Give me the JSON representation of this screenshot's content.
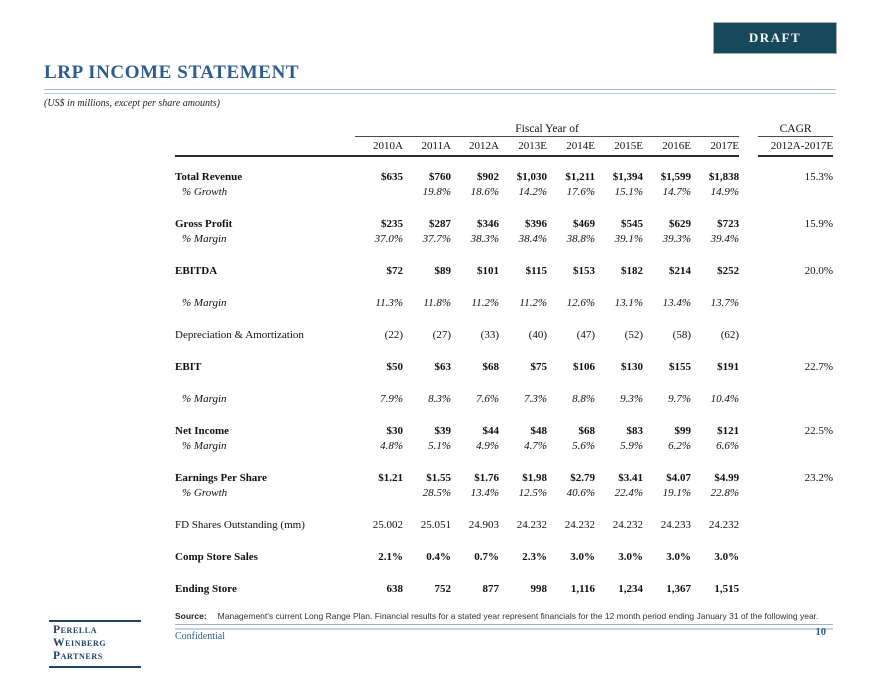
{
  "badge": {
    "label": "DRAFT"
  },
  "header": {
    "title": "LRP INCOME STATEMENT",
    "subtitle": "(US$ in millions, except per share amounts)"
  },
  "table": {
    "group_header": "Fiscal Year of",
    "cagr_header": "CAGR",
    "cagr_subheader": "2012A-2017E",
    "columns": [
      "2010A",
      "2011A",
      "2012A",
      "2013E",
      "2014E",
      "2015E",
      "2016E",
      "2017E"
    ],
    "rows": [
      {
        "label": "Total Revenue",
        "style": "bold",
        "break": false,
        "values": [
          "$635",
          "$760",
          "$902",
          "$1,030",
          "$1,211",
          "$1,394",
          "$1,599",
          "$1,838"
        ],
        "cagr": "15.3%"
      },
      {
        "label": "% Growth",
        "style": "italic",
        "break": false,
        "values": [
          "",
          "19.8%",
          "18.6%",
          "14.2%",
          "17.6%",
          "15.1%",
          "14.7%",
          "14.9%"
        ],
        "cagr": ""
      },
      {
        "label": "Gross Profit",
        "style": "bold",
        "break": true,
        "values": [
          "$235",
          "$287",
          "$346",
          "$396",
          "$469",
          "$545",
          "$629",
          "$723"
        ],
        "cagr": "15.9%"
      },
      {
        "label": "% Margin",
        "style": "italic",
        "break": false,
        "values": [
          "37.0%",
          "37.7%",
          "38.3%",
          "38.4%",
          "38.8%",
          "39.1%",
          "39.3%",
          "39.4%"
        ],
        "cagr": ""
      },
      {
        "label": "EBITDA",
        "style": "bold",
        "break": true,
        "values": [
          "$72",
          "$89",
          "$101",
          "$115",
          "$153",
          "$182",
          "$214",
          "$252"
        ],
        "cagr": "20.0%"
      },
      {
        "label": "% Margin",
        "style": "italic",
        "break": true,
        "values": [
          "11.3%",
          "11.8%",
          "11.2%",
          "11.2%",
          "12.6%",
          "13.1%",
          "13.4%",
          "13.7%"
        ],
        "cagr": ""
      },
      {
        "label": "Depreciation & Amortization",
        "style": "plain",
        "break": true,
        "values": [
          "(22)",
          "(27)",
          "(33)",
          "(40)",
          "(47)",
          "(52)",
          "(58)",
          "(62)"
        ],
        "cagr": ""
      },
      {
        "label": "EBIT",
        "style": "bold",
        "break": true,
        "values": [
          "$50",
          "$63",
          "$68",
          "$75",
          "$106",
          "$130",
          "$155",
          "$191"
        ],
        "cagr": "22.7%"
      },
      {
        "label": "% Margin",
        "style": "italic",
        "break": true,
        "values": [
          "7.9%",
          "8.3%",
          "7.6%",
          "7.3%",
          "8.8%",
          "9.3%",
          "9.7%",
          "10.4%"
        ],
        "cagr": ""
      },
      {
        "label": "Net Income",
        "style": "bold",
        "break": true,
        "values": [
          "$30",
          "$39",
          "$44",
          "$48",
          "$68",
          "$83",
          "$99",
          "$121"
        ],
        "cagr": "22.5%"
      },
      {
        "label": "% Margin",
        "style": "italic",
        "break": false,
        "values": [
          "4.8%",
          "5.1%",
          "4.9%",
          "4.7%",
          "5.6%",
          "5.9%",
          "6.2%",
          "6.6%"
        ],
        "cagr": ""
      },
      {
        "label": "Earnings Per Share",
        "style": "bold",
        "break": true,
        "values": [
          "$1.21",
          "$1.55",
          "$1.76",
          "$1.98",
          "$2.79",
          "$3.41",
          "$4.07",
          "$4.99"
        ],
        "cagr": "23.2%"
      },
      {
        "label": "% Growth",
        "style": "italic",
        "break": false,
        "values": [
          "",
          "28.5%",
          "13.4%",
          "12.5%",
          "40.6%",
          "22.4%",
          "19.1%",
          "22.8%"
        ],
        "cagr": ""
      },
      {
        "label": "FD Shares Outstanding (mm)",
        "style": "plain",
        "break": true,
        "values": [
          "25.002",
          "25.051",
          "24.903",
          "24.232",
          "24.232",
          "24.232",
          "24.233",
          "24.232"
        ],
        "cagr": ""
      },
      {
        "label": "Comp Store Sales",
        "style": "bold",
        "break": true,
        "values": [
          "2.1%",
          "0.4%",
          "0.7%",
          "2.3%",
          "3.0%",
          "3.0%",
          "3.0%",
          "3.0%"
        ],
        "cagr": ""
      },
      {
        "label": "Ending Store",
        "style": "bold",
        "break": true,
        "values": [
          "638",
          "752",
          "877",
          "998",
          "1,116",
          "1,234",
          "1,367",
          "1,515"
        ],
        "cagr": ""
      }
    ]
  },
  "footnote": {
    "source_label": "Source:",
    "source_text": "Management's current Long Range Plan. Financial results for a stated year represent financials for the 12 month period ending January 31 of the following year."
  },
  "footer": {
    "logo_lines": [
      "Perella",
      "Weinberg",
      "Partners"
    ],
    "confidential": "Confidential",
    "page_number": "10"
  },
  "colors": {
    "accent_blue": "#2e5c8e",
    "draft_background": "#17495d",
    "logo_navy": "#20406b",
    "rule_light_blue": "#a3b9d0"
  }
}
